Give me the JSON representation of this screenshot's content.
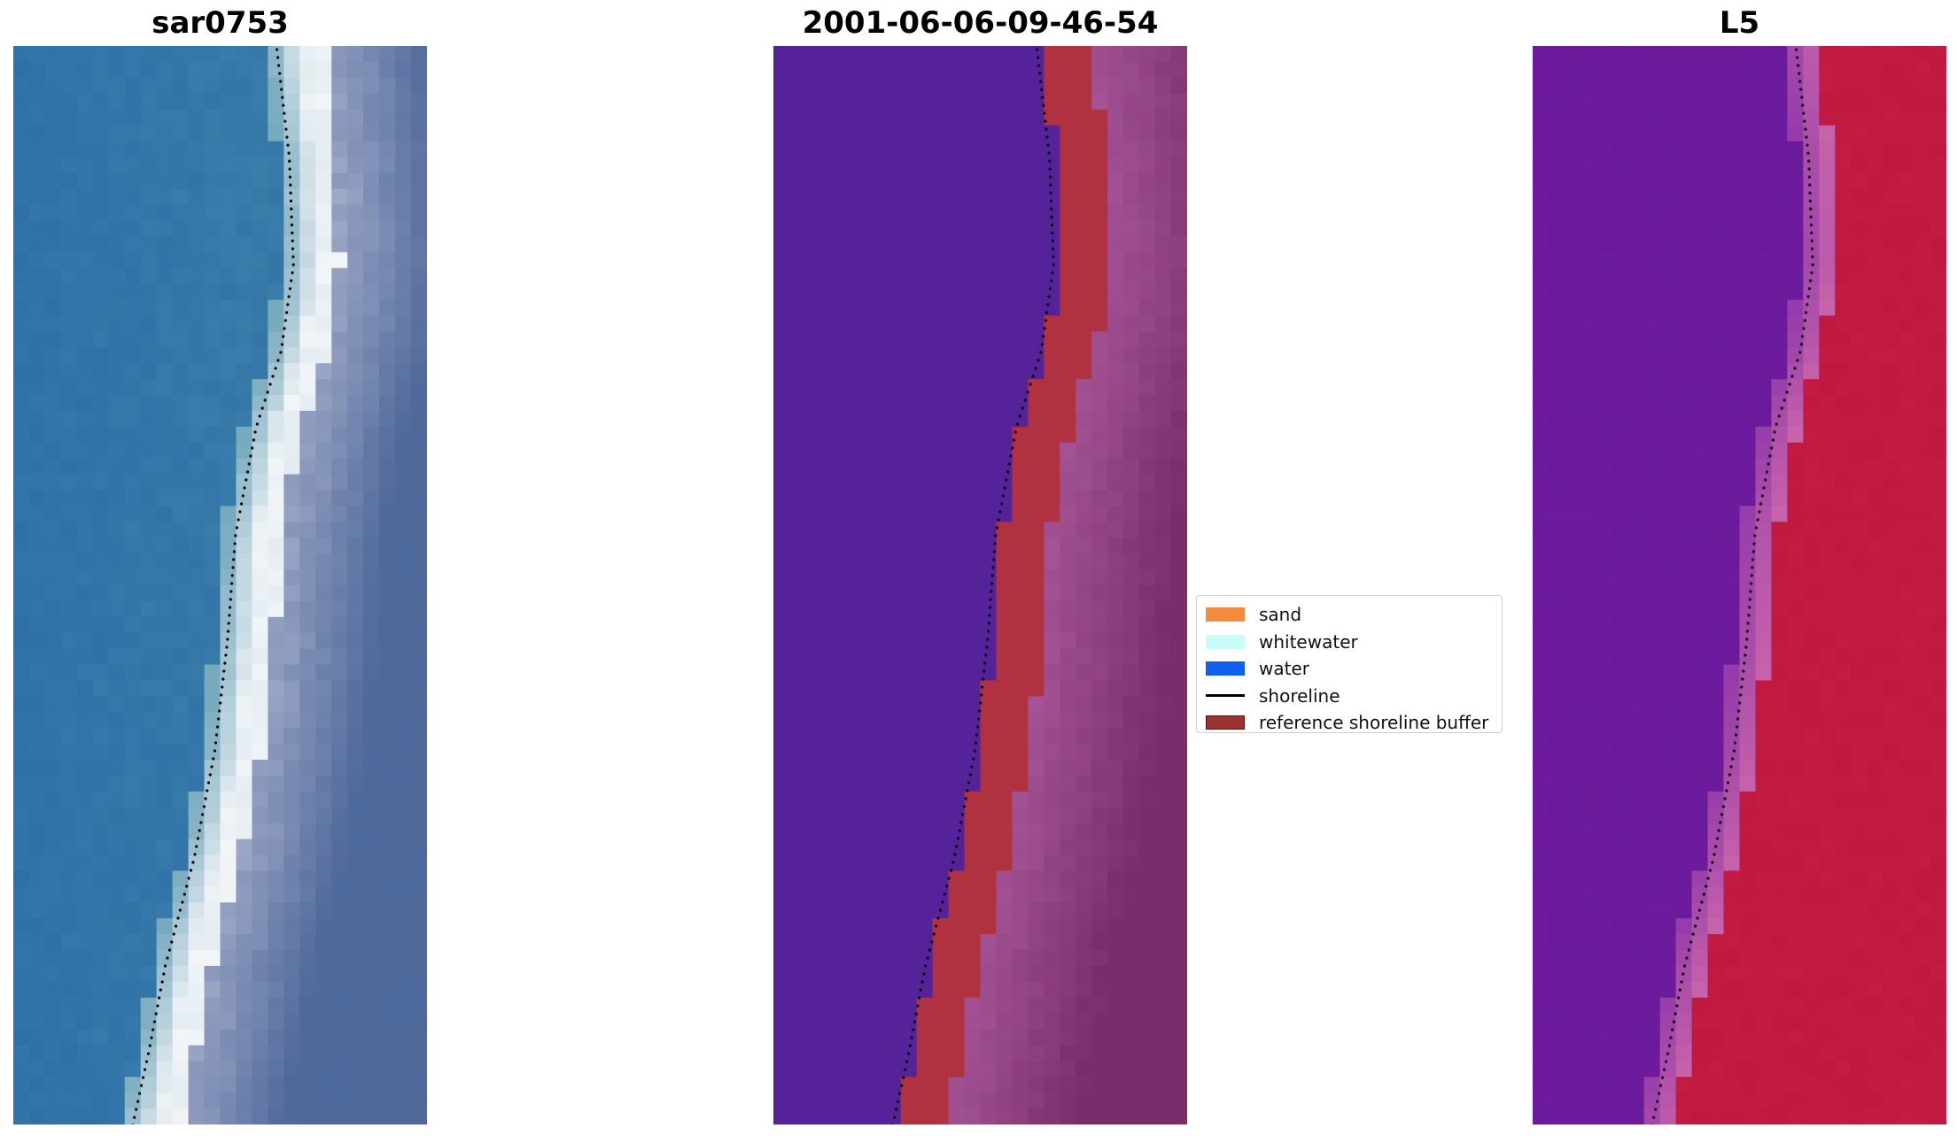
{
  "titles": {
    "left": "sar0753",
    "middle": "2001-06-06-09-46-54",
    "right": "L5"
  },
  "legend": {
    "items": [
      {
        "label": "sand",
        "color": "#f58b3c",
        "kind": "patch"
      },
      {
        "label": "whitewater",
        "color": "#c9fbf8",
        "kind": "patch"
      },
      {
        "label": "water",
        "color": "#1060f0",
        "kind": "patch"
      },
      {
        "label": "shoreline",
        "color": "#000000",
        "kind": "line"
      },
      {
        "label": "reference shoreline buffer",
        "color": "#9b3131",
        "kind": "patch-border"
      }
    ]
  },
  "colors": {
    "ocean_blue": "#2f74aa",
    "foam_white": "#f2f5f8",
    "land_slate": "#4f6a9c",
    "class_water_purple": "#552299",
    "buffer_red": "#b03240",
    "land_mauve": "#7a2d6a",
    "l5_violet": "#6b1a9c",
    "l5_crimson": "#c0183e",
    "shoreline_dot": "#000000"
  }
}
